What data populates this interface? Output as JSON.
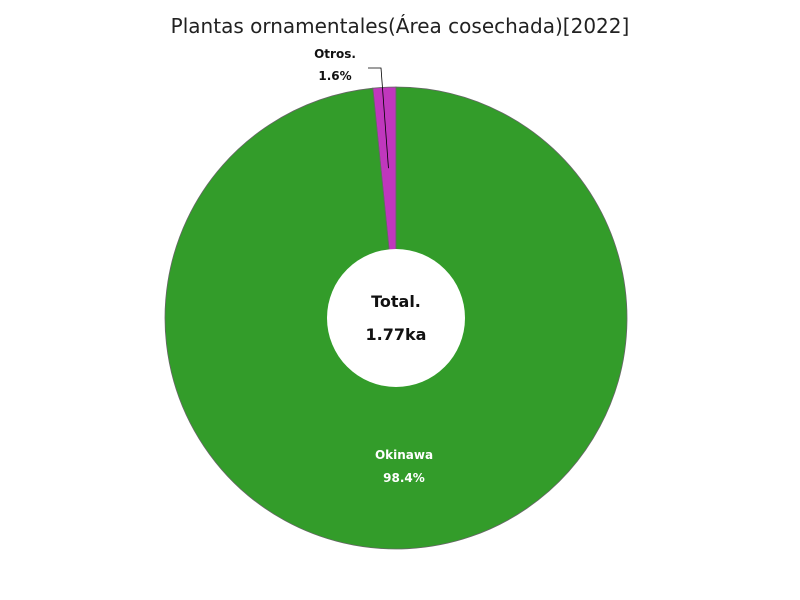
{
  "chart_data": {
    "type": "pie",
    "title": "Plantas ornamentales(Área cosechada)[2022]",
    "slices": [
      {
        "label": "Otros.",
        "percent_text": "1.6%",
        "value": 1.6,
        "color": "#c037bd"
      },
      {
        "label": "Okinawa",
        "percent_text": "98.4%",
        "value": 98.4,
        "color": "#339c2a"
      }
    ],
    "center": {
      "label": "Total.",
      "value_text": "1.77ka"
    },
    "legend": "none"
  }
}
